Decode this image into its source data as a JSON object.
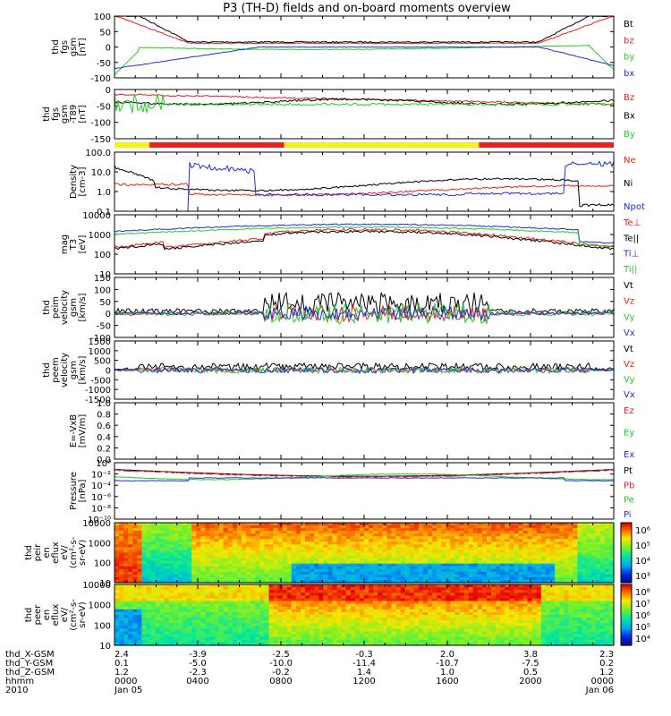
{
  "title": "P3 (TH-D) fields and on-board moments overview",
  "colors": {
    "black": "#000000",
    "red": "#e8221b",
    "green": "#22cc22",
    "blue": "#1f2fd6",
    "yellow": "#f5f21a",
    "bar_red": "#f02020"
  },
  "time_axis": {
    "range_hours": [
      0,
      24
    ],
    "rows": [
      {
        "label": "thd_X-GSM",
        "values": [
          "2.4",
          "-3.9",
          "-2.5",
          "-0.3",
          "2.0",
          "3.8",
          "2.3"
        ]
      },
      {
        "label": "thd_Y-GSM",
        "values": [
          "0.1",
          "-5.0",
          "-10.0",
          "-11.4",
          "-10.7",
          "-7.5",
          "0.2"
        ]
      },
      {
        "label": "thd_Z-GSM",
        "values": [
          "1.2",
          "-2.3",
          "-0.2",
          "1.4",
          "1.0",
          "0.5",
          "1.2"
        ]
      },
      {
        "label": "hhmm",
        "values": [
          "0000",
          "0400",
          "0800",
          "1200",
          "1600",
          "2000",
          "0000"
        ]
      },
      {
        "label": "2010",
        "values": [
          "Jan 05",
          "",
          "",
          "",
          "",
          "",
          "Jan 06"
        ]
      }
    ]
  },
  "chart_data": [
    {
      "type": "line",
      "id": "fgs",
      "ylabel": [
        "thd",
        "fgs",
        "gsm",
        "[nT]"
      ],
      "ylim": [
        -100,
        100
      ],
      "ticks": [
        "100",
        "50",
        "0",
        "-50",
        "-100"
      ],
      "series": [
        {
          "name": "Bt",
          "color": "#000000"
        },
        {
          "name": "bz",
          "color": "#e8221b"
        },
        {
          "name": "by",
          "color": "#22cc22"
        },
        {
          "name": "bx",
          "color": "#1f2fd6"
        }
      ]
    },
    {
      "type": "line",
      "id": "fgs_t89",
      "ylabel": [
        "thd",
        "fgs",
        "gsm",
        "-T89",
        "[nT]"
      ],
      "ylim": [
        -175,
        25
      ],
      "ticks": [
        "0",
        "-50",
        "-100",
        "-150"
      ],
      "series": [
        {
          "name": "Bz",
          "color": "#e8221b"
        },
        {
          "name": "Bx",
          "color": "#000000"
        },
        {
          "name": "By",
          "color": "#22cc22"
        }
      ]
    },
    {
      "type": "line",
      "id": "density",
      "log": true,
      "ylabel": [
        "Density",
        "[cm-3]"
      ],
      "ylim": [
        0.1,
        100
      ],
      "ticks": [
        "100.0",
        "10.0",
        "1.0",
        "0.1"
      ],
      "series": [
        {
          "name": "Ne",
          "color": "#e8221b"
        },
        {
          "name": "Ni",
          "color": "#000000"
        },
        {
          "name": "Npot",
          "color": "#1f2fd6"
        }
      ]
    },
    {
      "type": "line",
      "id": "temp",
      "log": true,
      "ylabel": [
        "mag",
        "T3",
        "[eV]"
      ],
      "ylim": [
        10,
        10000
      ],
      "ticks": [
        "10000",
        "1000",
        "100",
        "10"
      ],
      "series": [
        {
          "name": "Te⊥",
          "color": "#e8221b"
        },
        {
          "name": "Te||",
          "color": "#000000"
        },
        {
          "name": "Ti⊥",
          "color": "#1f2fd6"
        },
        {
          "name": "Ti||",
          "color": "#22cc22"
        }
      ]
    },
    {
      "type": "line",
      "id": "peim_v",
      "ylabel": [
        "thd",
        "peim",
        "velocity",
        "gsm",
        "[km/s]"
      ],
      "ylim": [
        -100,
        150
      ],
      "ticks": [
        "150",
        "100",
        "50",
        "0",
        "-50",
        "-100"
      ],
      "series": [
        {
          "name": "Vt",
          "color": "#000000"
        },
        {
          "name": "Vz",
          "color": "#e8221b"
        },
        {
          "name": "Vy",
          "color": "#22cc22"
        },
        {
          "name": "Vx",
          "color": "#1f2fd6"
        }
      ]
    },
    {
      "type": "line",
      "id": "peem_v",
      "ylabel": [
        "thd",
        "peem",
        "velocity",
        "gsm",
        "[km/s]"
      ],
      "ylim": [
        -1500,
        1500
      ],
      "ticks": [
        "1500",
        "1000",
        "500",
        "0",
        "-500",
        "-1000",
        "-1500"
      ],
      "series": [
        {
          "name": "Vt",
          "color": "#000000"
        },
        {
          "name": "Vz",
          "color": "#e8221b"
        },
        {
          "name": "Vy",
          "color": "#22cc22"
        },
        {
          "name": "Vx",
          "color": "#1f2fd6"
        }
      ]
    },
    {
      "type": "line",
      "id": "efield",
      "ylabel": [
        "E=-VxB",
        "[mV/m]"
      ],
      "ylim": [
        0,
        1
      ],
      "ticks": [
        "1.0",
        "0.8",
        "0.6",
        "0.4",
        "0.2",
        "0.0"
      ],
      "series": [
        {
          "name": "Ez",
          "color": "#e8221b"
        },
        {
          "name": "Ey",
          "color": "#22cc22"
        },
        {
          "name": "Ex",
          "color": "#1f2fd6"
        }
      ]
    },
    {
      "type": "line",
      "id": "pressure",
      "log": true,
      "ylabel": [
        "Pressure",
        "[nPa]"
      ],
      "ylim": [
        1e-10,
        1
      ],
      "ticks": [
        "10⁰",
        "10⁻²",
        "10⁻⁴",
        "10⁻⁶",
        "10⁻⁸",
        "10⁻¹⁰"
      ],
      "series": [
        {
          "name": "Pt",
          "color": "#000000"
        },
        {
          "name": "Pb",
          "color": "#e8221b"
        },
        {
          "name": "Pe",
          "color": "#22cc22"
        },
        {
          "name": "Pi",
          "color": "#1f2fd6"
        }
      ]
    },
    {
      "type": "heatmap",
      "id": "peir",
      "ylabel": [
        "thd",
        "peir",
        "en",
        "eflux",
        "eV/",
        "(cm²-s-",
        "sr-eV)"
      ],
      "ylim": [
        10,
        10000
      ],
      "ticks": [
        "10000",
        "1000",
        "100",
        "10"
      ],
      "colorbar_ticks": [
        "10⁶",
        "10⁵",
        "10⁴",
        "10³"
      ]
    },
    {
      "type": "heatmap",
      "id": "peer",
      "ylabel": [
        "thd",
        "peer",
        "en",
        "eflux",
        "eV/",
        "(cm²-s-",
        "sr-eV)"
      ],
      "ylim": [
        10,
        10000
      ],
      "ticks": [
        "10000",
        "1000",
        "100",
        "10"
      ],
      "colorbar_ticks": [
        "10⁸",
        "10⁷",
        "10⁶",
        "10⁵",
        "10⁴"
      ]
    }
  ]
}
